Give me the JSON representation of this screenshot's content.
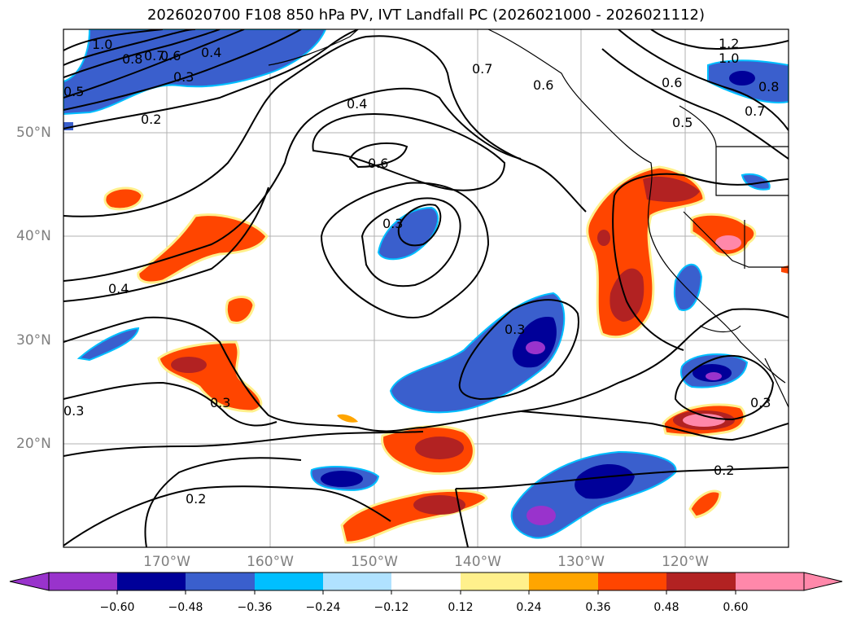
{
  "title": "2026020700 F108 850 hPa PV, IVT Landfall PC (2026021000 - 2026021112)",
  "lat_labels": [
    "50°N",
    "40°N",
    "30°N",
    "20°N"
  ],
  "lon_labels": [
    "170°W",
    "160°W",
    "150°W",
    "140°W",
    "130°W",
    "120°W"
  ],
  "colorbar": {
    "ticks": [
      "−0.60",
      "−0.48",
      "−0.36",
      "−0.24",
      "−0.12",
      "0.12",
      "0.24",
      "0.36",
      "0.48",
      "0.60"
    ],
    "colors": [
      "#9933cc",
      "#000099",
      "#3a5fcd",
      "#00bfff",
      "#b0e2ff",
      "#ffffff",
      "#fff08c",
      "#ffa500",
      "#ff4500",
      "#b22222",
      "#ff88aa"
    ]
  },
  "contour_labels": [
    "1.0",
    "0.8",
    "0.7",
    "0.6",
    "0.4",
    "0.3",
    "0.5",
    "0.2",
    "0.7",
    "0.6",
    "0.4",
    "0.6",
    "0.3",
    "0.4",
    "0.3",
    "0.3",
    "0.3",
    "0.2",
    "0.2",
    "0.3",
    "1.2",
    "1.0",
    "0.6",
    "0.8",
    "0.7",
    "0.5"
  ]
}
